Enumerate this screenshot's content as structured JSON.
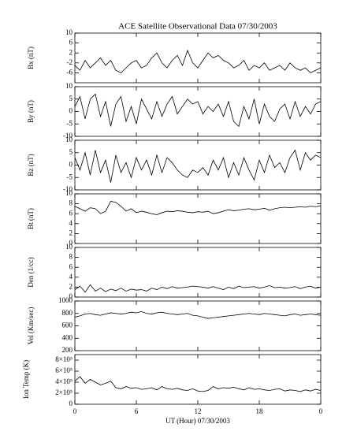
{
  "chart_data": [
    {
      "type": "line",
      "title": "ACE Satellite Observational Data   07/30/2003",
      "ylabel": "Bx (nT)",
      "color": "#000000",
      "x": [
        0,
        0.5,
        1,
        1.5,
        2,
        2.5,
        3,
        3.5,
        4,
        4.5,
        5,
        5.5,
        6,
        6.5,
        7,
        7.5,
        8,
        8.5,
        9,
        9.5,
        10,
        10.5,
        11,
        11.5,
        12,
        12.5,
        13,
        13.5,
        14,
        14.5,
        15,
        15.5,
        16,
        16.5,
        17,
        17.5,
        18,
        18.5,
        19,
        19.5,
        20,
        20.5,
        21,
        21.5,
        22,
        22.5,
        23,
        23.5,
        24
      ],
      "values": [
        -3,
        -5,
        -1,
        -4,
        -2,
        0,
        -3,
        -1,
        -5,
        -6,
        -4,
        -2,
        -1,
        -4,
        -3,
        0,
        2,
        -2,
        -4,
        -1,
        1,
        -3,
        3,
        -2,
        -4,
        -1,
        2,
        0,
        1,
        -1,
        -2,
        -4,
        -3,
        -1,
        -5,
        -3,
        -4,
        -2,
        -5,
        -4,
        -3,
        -5,
        -2,
        -4,
        -5,
        -4,
        -6,
        -5,
        -4
      ],
      "xlim": [
        0,
        24
      ],
      "xticks": [
        0,
        6,
        12,
        18,
        24
      ],
      "ylim": [
        -10,
        10
      ],
      "yticks": [
        -6,
        -2,
        2,
        6,
        10
      ]
    },
    {
      "type": "line",
      "ylabel": "By (nT)",
      "color": "#000000",
      "x": [
        0,
        0.5,
        1,
        1.5,
        2,
        2.5,
        3,
        3.5,
        4,
        4.5,
        5,
        5.5,
        6,
        6.5,
        7,
        7.5,
        8,
        8.5,
        9,
        9.5,
        10,
        10.5,
        11,
        11.5,
        12,
        12.5,
        13,
        13.5,
        14,
        14.5,
        15,
        15.5,
        16,
        16.5,
        17,
        17.5,
        18,
        18.5,
        19,
        19.5,
        20,
        20.5,
        21,
        21.5,
        22,
        22.5,
        23,
        23.5,
        24
      ],
      "values": [
        2,
        6,
        -3,
        5,
        7,
        -2,
        4,
        -6,
        3,
        6,
        -4,
        2,
        -5,
        5,
        1,
        -3,
        4,
        -2,
        3,
        6,
        -1,
        2,
        5,
        3,
        4,
        -1,
        2,
        0,
        3,
        -2,
        4,
        -4,
        -6,
        2,
        -3,
        5,
        -5,
        3,
        -2,
        -4,
        1,
        3,
        -3,
        4,
        -2,
        2,
        -1,
        3,
        4
      ],
      "xlim": [
        0,
        24
      ],
      "xticks": [
        0,
        6,
        12,
        18,
        24
      ],
      "ylim": [
        -10,
        10
      ],
      "yticks": [
        -10,
        -5,
        0,
        5,
        10
      ]
    },
    {
      "type": "line",
      "ylabel": "Bz (nT)",
      "color": "#000000",
      "x": [
        0,
        0.5,
        1,
        1.5,
        2,
        2.5,
        3,
        3.5,
        4,
        4.5,
        5,
        5.5,
        6,
        6.5,
        7,
        7.5,
        8,
        8.5,
        9,
        9.5,
        10,
        10.5,
        11,
        11.5,
        12,
        12.5,
        13,
        13.5,
        14,
        14.5,
        15,
        15.5,
        16,
        16.5,
        17,
        17.5,
        18,
        18.5,
        19,
        19.5,
        20,
        20.5,
        21,
        21.5,
        22,
        22.5,
        23,
        23.5,
        24
      ],
      "values": [
        3,
        -2,
        5,
        -4,
        6,
        -3,
        2,
        -7,
        4,
        -3,
        1,
        -5,
        3,
        -2,
        2,
        -4,
        4,
        -3,
        3,
        1,
        -2,
        -4,
        -5,
        -2,
        -3,
        -1,
        -4,
        2,
        -2,
        3,
        -5,
        1,
        -4,
        3,
        -2,
        -6,
        2,
        -3,
        4,
        -1,
        1,
        -3,
        3,
        6,
        -2,
        5,
        2,
        4,
        3
      ],
      "xlim": [
        0,
        24
      ],
      "xticks": [
        0,
        6,
        12,
        18,
        24
      ],
      "ylim": [
        -10,
        10
      ],
      "yticks": [
        -10,
        -5,
        0,
        5,
        10
      ]
    },
    {
      "type": "line",
      "ylabel": "Bt (nT)",
      "color": "#000000",
      "x": [
        0,
        0.5,
        1,
        1.5,
        2,
        2.5,
        3,
        3.5,
        4,
        4.5,
        5,
        5.5,
        6,
        6.5,
        7,
        7.5,
        8,
        8.5,
        9,
        9.5,
        10,
        10.5,
        11,
        11.5,
        12,
        12.5,
        13,
        13.5,
        14,
        14.5,
        15,
        15.5,
        16,
        16.5,
        17,
        17.5,
        18,
        18.5,
        19,
        19.5,
        20,
        20.5,
        21,
        21.5,
        22,
        22.5,
        23,
        23.5,
        24
      ],
      "values": [
        7.5,
        7,
        6.5,
        7.2,
        7,
        6,
        6.5,
        8.5,
        8.3,
        7.5,
        6.5,
        7,
        6.2,
        6.5,
        6.3,
        6,
        5.8,
        6.2,
        6.5,
        6.4,
        6.6,
        6.5,
        6.3,
        6.2,
        6.4,
        6.3,
        6.5,
        6,
        6.2,
        6.5,
        6.8,
        6.6,
        6.7,
        6.9,
        7,
        6.8,
        6.9,
        7.1,
        6.7,
        7,
        7.2,
        7.3,
        7.2,
        7.3,
        7.4,
        7.3,
        7.5,
        7.4,
        7.6
      ],
      "xlim": [
        0,
        24
      ],
      "xticks": [
        0,
        6,
        12,
        18,
        24
      ],
      "ylim": [
        0,
        10
      ],
      "yticks": [
        0,
        2,
        4,
        6,
        8,
        10
      ]
    },
    {
      "type": "line",
      "ylabel": "Den (1/cc)",
      "color": "#000000",
      "x": [
        0,
        0.5,
        1,
        1.5,
        2,
        2.5,
        3,
        3.5,
        4,
        4.5,
        5,
        5.5,
        6,
        6.5,
        7,
        7.5,
        8,
        8.5,
        9,
        9.5,
        10,
        10.5,
        11,
        11.5,
        12,
        12.5,
        13,
        13.5,
        14,
        14.5,
        15,
        15.5,
        16,
        16.5,
        17,
        17.5,
        18,
        18.5,
        19,
        19.5,
        20,
        20.5,
        21,
        21.5,
        22,
        22.5,
        23,
        23.5,
        24
      ],
      "values": [
        1.5,
        2.2,
        1,
        2.5,
        1.2,
        1.8,
        1.1,
        1.6,
        1.3,
        1.8,
        1.2,
        1.6,
        1.4,
        1.5,
        1.2,
        1.8,
        1.5,
        2,
        1.7,
        2.1,
        1.8,
        1.9,
        2,
        2.2,
        2.1,
        2,
        1.8,
        2.1,
        1.8,
        1.5,
        2,
        1.7,
        2.2,
        1.9,
        2,
        2.1,
        1.8,
        2,
        2.3,
        1.9,
        2,
        1.8,
        1.9,
        2.1,
        1.7,
        2,
        2.2,
        1.8,
        2
      ],
      "xlim": [
        0,
        24
      ],
      "xticks": [
        0,
        6,
        12,
        18,
        24
      ],
      "ylim": [
        0,
        10
      ],
      "yticks": [
        0,
        2,
        4,
        6,
        8,
        10
      ]
    },
    {
      "type": "line",
      "ylabel": "Vel (Km/sec)",
      "color": "#000000",
      "x": [
        0,
        0.5,
        1,
        1.5,
        2,
        2.5,
        3,
        3.5,
        4,
        4.5,
        5,
        5.5,
        6,
        6.5,
        7,
        7.5,
        8,
        8.5,
        9,
        9.5,
        10,
        10.5,
        11,
        11.5,
        12,
        12.5,
        13,
        13.5,
        14,
        14.5,
        15,
        15.5,
        16,
        16.5,
        17,
        17.5,
        18,
        18.5,
        19,
        19.5,
        20,
        20.5,
        21,
        21.5,
        22,
        22.5,
        23,
        23.5,
        24
      ],
      "values": [
        740,
        760,
        790,
        800,
        780,
        770,
        790,
        810,
        800,
        790,
        800,
        820,
        810,
        830,
        800,
        790,
        810,
        820,
        800,
        790,
        780,
        790,
        800,
        770,
        760,
        740,
        720,
        730,
        740,
        750,
        760,
        770,
        780,
        790,
        800,
        790,
        780,
        800,
        790,
        780,
        770,
        760,
        780,
        790,
        770,
        780,
        790,
        780,
        770
      ],
      "xlim": [
        0,
        24
      ],
      "xticks": [
        0,
        6,
        12,
        18,
        24
      ],
      "ylim": [
        200,
        1000
      ],
      "yticks": [
        200,
        400,
        600,
        800,
        1000
      ]
    },
    {
      "type": "line",
      "ylabel": "Ion Temp (K)",
      "xlabel": "UT (Hour)   07/30/2003",
      "color": "#000000",
      "x": [
        0,
        0.5,
        1,
        1.5,
        2,
        2.5,
        3,
        3.5,
        4,
        4.5,
        5,
        5.5,
        6,
        6.5,
        7,
        7.5,
        8,
        8.5,
        9,
        9.5,
        10,
        10.5,
        11,
        11.5,
        12,
        12.5,
        13,
        13.5,
        14,
        14.5,
        15,
        15.5,
        16,
        16.5,
        17,
        17.5,
        18,
        18.5,
        19,
        19.5,
        20,
        20.5,
        21,
        21.5,
        22,
        22.5,
        23,
        23.5,
        24
      ],
      "values": [
        420000,
        500000,
        380000,
        450000,
        400000,
        350000,
        380000,
        420000,
        300000,
        280000,
        320000,
        290000,
        300000,
        270000,
        280000,
        300000,
        260000,
        320000,
        280000,
        270000,
        290000,
        260000,
        250000,
        280000,
        240000,
        230000,
        250000,
        320000,
        280000,
        300000,
        290000,
        310000,
        280000,
        260000,
        300000,
        270000,
        280000,
        260000,
        250000,
        270000,
        280000,
        240000,
        260000,
        250000,
        230000,
        260000,
        240000,
        270000,
        250000
      ],
      "xlim": [
        0,
        24
      ],
      "xticks": [
        0,
        6,
        12,
        18,
        {
          "value": 24,
          "label": "0"
        }
      ],
      "ylim": [
        0,
        900000
      ],
      "yticks": [
        0,
        {
          "value": 200000,
          "label": "2×10⁵"
        },
        {
          "value": 400000,
          "label": "4×10⁵"
        },
        {
          "value": 600000,
          "label": "6×10⁵"
        },
        {
          "value": 800000,
          "label": "8×10⁵"
        }
      ]
    }
  ]
}
